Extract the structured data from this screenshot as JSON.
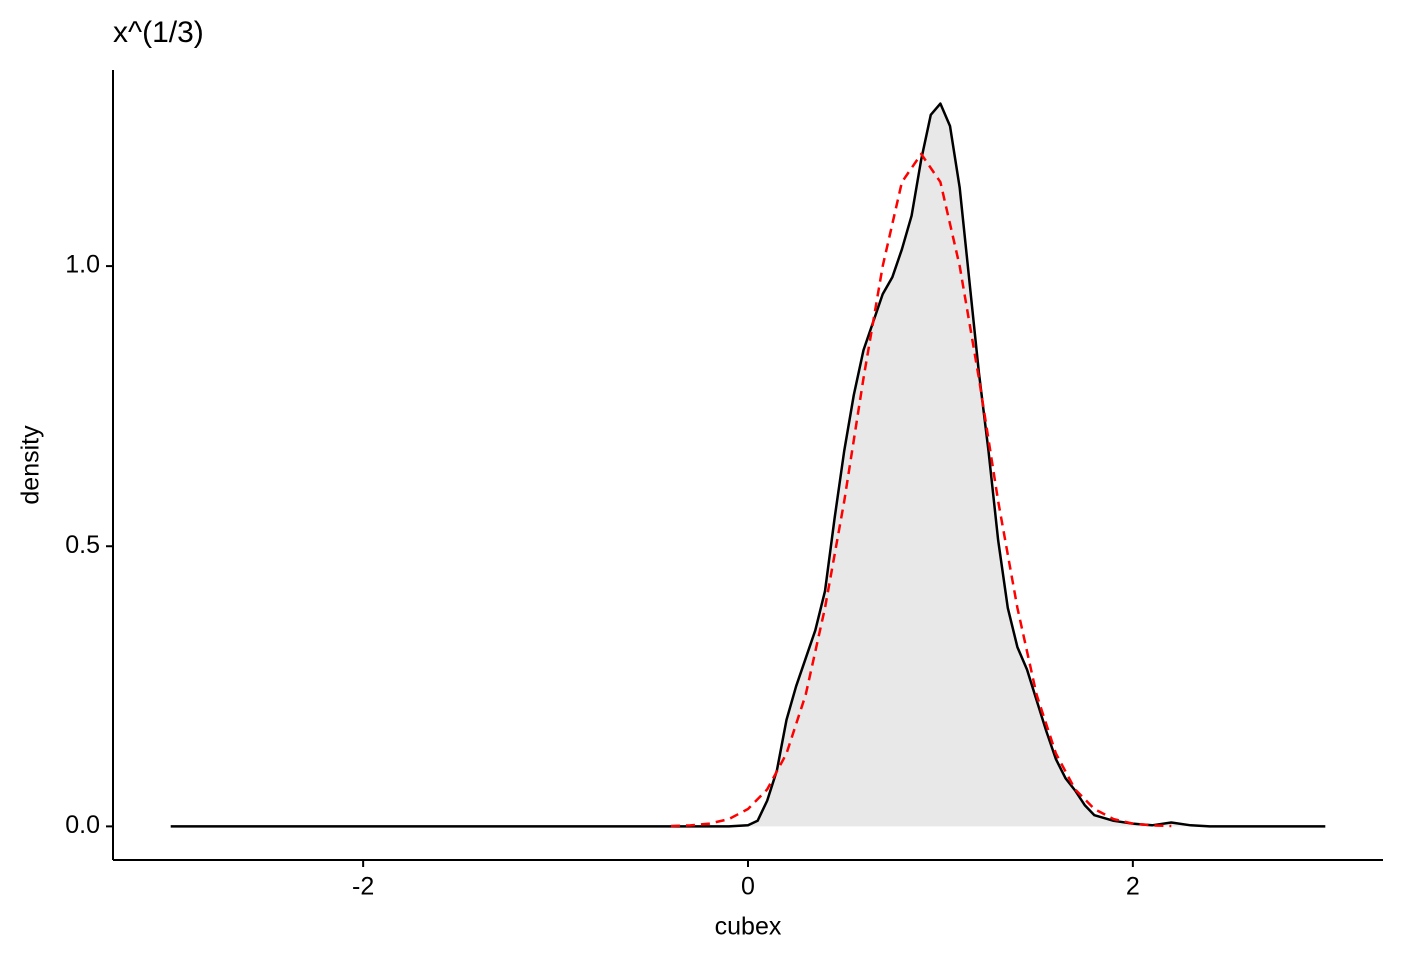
{
  "chart_data": {
    "type": "density",
    "title": "x^(1/3)",
    "x_label": "cubex",
    "y_label": "density",
    "xlim": [
      -3.3,
      3.3
    ],
    "ylim": [
      -0.06,
      1.35
    ],
    "xticks": [
      -2,
      0,
      2
    ],
    "yticks": [
      {
        "value": 0,
        "label": "0.0"
      },
      {
        "value": 0.5,
        "label": "0.5"
      },
      {
        "value": 1,
        "label": "1.0"
      }
    ],
    "grid": false,
    "series": [
      {
        "color": "#000000",
        "fill": "#e8e8e8",
        "style": "solid",
        "x": [
          -3,
          -2,
          -1,
          -0.5,
          -0.1,
          0,
          0.05,
          0.1,
          0.15,
          0.2,
          0.25,
          0.3,
          0.35,
          0.4,
          0.45,
          0.5,
          0.55,
          0.6,
          0.65,
          0.7,
          0.75,
          0.8,
          0.85,
          0.9,
          0.95,
          1.0,
          1.05,
          1.1,
          1.15,
          1.2,
          1.25,
          1.3,
          1.35,
          1.4,
          1.45,
          1.5,
          1.55,
          1.6,
          1.65,
          1.7,
          1.75,
          1.8,
          1.9,
          2.0,
          2.1,
          2.2,
          2.3,
          2.4,
          3
        ],
        "values": [
          0,
          0,
          0,
          0,
          0,
          0.002,
          0.01,
          0.046,
          0.1,
          0.19,
          0.25,
          0.3,
          0.35,
          0.42,
          0.55,
          0.67,
          0.77,
          0.85,
          0.9,
          0.95,
          0.98,
          1.03,
          1.09,
          1.19,
          1.27,
          1.29,
          1.25,
          1.14,
          0.975,
          0.81,
          0.67,
          0.51,
          0.39,
          0.32,
          0.28,
          0.225,
          0.17,
          0.12,
          0.086,
          0.064,
          0.038,
          0.02,
          0.01,
          0.005,
          0.002,
          0.007,
          0.002,
          0,
          0
        ]
      },
      {
        "color": "#ff0000",
        "style": "dashed",
        "x": [
          -0.4,
          -0.3,
          -0.2,
          -0.1,
          0,
          0.1,
          0.2,
          0.3,
          0.4,
          0.5,
          0.6,
          0.7,
          0.8,
          0.9,
          1.0,
          1.1,
          1.2,
          1.3,
          1.4,
          1.5,
          1.6,
          1.7,
          1.8,
          1.9,
          2.0,
          2.1,
          2.2
        ],
        "values": [
          0.0006,
          0.0018,
          0.005,
          0.013,
          0.031,
          0.066,
          0.13,
          0.235,
          0.39,
          0.58,
          0.8,
          1.0,
          1.15,
          1.2,
          1.15,
          1.0,
          0.8,
          0.58,
          0.39,
          0.235,
          0.13,
          0.066,
          0.031,
          0.013,
          0.005,
          0.0018,
          0.0006
        ]
      }
    ]
  }
}
